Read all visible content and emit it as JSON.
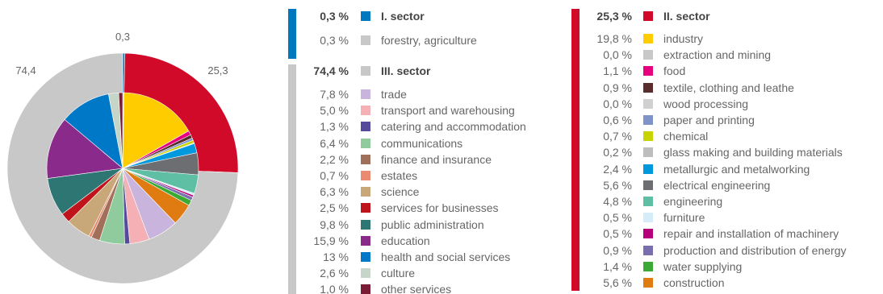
{
  "chart_data": {
    "type": "pie",
    "title": "",
    "outer_ring": {
      "slices": [
        {
          "name": "I. sector",
          "value": 0.3,
          "label": "0,3",
          "color": "#0078bf"
        },
        {
          "name": "II. sector",
          "value": 25.3,
          "label": "25,3",
          "color": "#d20a29"
        },
        {
          "name": "III. sector",
          "value": 74.4,
          "label": "74,4",
          "color": "#c8c8c8"
        }
      ]
    },
    "inner_ring": {
      "slices": [
        {
          "name": "forestry, agriculture",
          "value": 0.3,
          "color": "#c8c8c8"
        },
        {
          "name": "industry",
          "value": 19.8,
          "color": "#ffcc00"
        },
        {
          "name": "extraction and mining",
          "value": 0.0,
          "color": "#c8c8c8"
        },
        {
          "name": "food",
          "value": 1.1,
          "color": "#e6007e"
        },
        {
          "name": "textile, clothing and leathe",
          "value": 0.9,
          "color": "#5a2d2d"
        },
        {
          "name": "wood processing",
          "value": 0.0,
          "color": "#d0d0d0"
        },
        {
          "name": "paper and printing",
          "value": 0.6,
          "color": "#7f93c8"
        },
        {
          "name": "chemical",
          "value": 0.7,
          "color": "#c8d400"
        },
        {
          "name": "glass making and building materials",
          "value": 0.2,
          "color": "#bdbdbd"
        },
        {
          "name": "metallurgic and metalworking",
          "value": 2.4,
          "color": "#0099dd"
        },
        {
          "name": "electrical engineering",
          "value": 5.6,
          "color": "#6d6e71"
        },
        {
          "name": "engineering",
          "value": 4.8,
          "color": "#5fbfa5"
        },
        {
          "name": "furniture",
          "value": 0.5,
          "color": "#d6ecf8"
        },
        {
          "name": "repair and installation of machinery",
          "value": 0.5,
          "color": "#b5007a"
        },
        {
          "name": "production and distribution of energy",
          "value": 0.9,
          "color": "#7a6fae"
        },
        {
          "name": "water supplying",
          "value": 1.4,
          "color": "#3aa935"
        },
        {
          "name": "construction",
          "value": 5.6,
          "color": "#e07b12"
        },
        {
          "name": "trade",
          "value": 7.8,
          "color": "#c8b4dc"
        },
        {
          "name": "transport and warehousing",
          "value": 5.0,
          "color": "#f4b0b5"
        },
        {
          "name": "catering and accommodation",
          "value": 1.3,
          "color": "#554a9c"
        },
        {
          "name": "communications",
          "value": 6.4,
          "color": "#8fcb9c"
        },
        {
          "name": "finance and insurance",
          "value": 2.2,
          "color": "#a0705a"
        },
        {
          "name": "estates",
          "value": 0.7,
          "color": "#ea8a70"
        },
        {
          "name": "science",
          "value": 6.3,
          "color": "#c8a878"
        },
        {
          "name": "services for businesses",
          "value": 2.5,
          "color": "#c0141c"
        },
        {
          "name": "public administration",
          "value": 9.8,
          "color": "#2d7673"
        },
        {
          "name": "education",
          "value": 15.9,
          "color": "#8a2a8a"
        },
        {
          "name": "health and social services",
          "value": 13,
          "color": "#0078c8"
        },
        {
          "name": "culture",
          "value": 2.6,
          "color": "#c5d6c8"
        },
        {
          "name": "other services",
          "value": 1.0,
          "color": "#7a1c35"
        }
      ]
    }
  },
  "legend": {
    "sector1": {
      "header": {
        "pct": "0,3 %",
        "label": "I. sector",
        "color": "#0078bf"
      },
      "items": [
        {
          "pct": "0,3 %",
          "label": "forestry, agriculture",
          "color": "#c8c8c8"
        }
      ]
    },
    "sector3": {
      "header": {
        "pct": "74,4 %",
        "label": "III. sector",
        "color": "#c8c8c8"
      },
      "items": [
        {
          "pct": "7,8 %",
          "label": "trade",
          "color": "#c8b4dc"
        },
        {
          "pct": "5,0 %",
          "label": "transport and warehousing",
          "color": "#f4b0b5"
        },
        {
          "pct": "1,3 %",
          "label": "catering and accommodation",
          "color": "#554a9c"
        },
        {
          "pct": "6,4 %",
          "label": "communications",
          "color": "#8fcb9c"
        },
        {
          "pct": "2,2 %",
          "label": "finance and insurance",
          "color": "#a0705a"
        },
        {
          "pct": "0,7 %",
          "label": "estates",
          "color": "#ea8a70"
        },
        {
          "pct": "6,3 %",
          "label": "science",
          "color": "#c8a878"
        },
        {
          "pct": "2,5 %",
          "label": "services for businesses",
          "color": "#c0141c"
        },
        {
          "pct": "9,8 %",
          "label": "public administration",
          "color": "#2d7673"
        },
        {
          "pct": "15,9 %",
          "label": "education",
          "color": "#8a2a8a"
        },
        {
          "pct": "13 %",
          "label": "health and social services",
          "color": "#0078c8"
        },
        {
          "pct": "2,6 %",
          "label": "culture",
          "color": "#c5d6c8"
        },
        {
          "pct": "1,0 %",
          "label": "other services",
          "color": "#7a1c35"
        }
      ]
    },
    "sector2": {
      "header": {
        "pct": "25,3 %",
        "label": "II. sector",
        "color": "#d20a29"
      },
      "items": [
        {
          "pct": "19,8 %",
          "label": "industry",
          "color": "#ffcc00"
        },
        {
          "pct": "0,0 %",
          "label": "extraction and mining",
          "color": "#c8c8c8"
        },
        {
          "pct": "1,1 %",
          "label": "food",
          "color": "#e6007e"
        },
        {
          "pct": "0,9 %",
          "label": "textile, clothing and leathe",
          "color": "#5a2d2d"
        },
        {
          "pct": "0,0 %",
          "label": "wood processing",
          "color": "#d0d0d0"
        },
        {
          "pct": "0,6 %",
          "label": "paper and printing",
          "color": "#7f93c8"
        },
        {
          "pct": "0,7 %",
          "label": "chemical",
          "color": "#c8d400"
        },
        {
          "pct": "0,2 %",
          "label": "glass making and building materials",
          "color": "#bdbdbd"
        },
        {
          "pct": "2,4 %",
          "label": "metallurgic and metalworking",
          "color": "#0099dd"
        },
        {
          "pct": "5,6 %",
          "label": "electrical engineering",
          "color": "#6d6e71"
        },
        {
          "pct": "4,8 %",
          "label": "engineering",
          "color": "#5fbfa5"
        },
        {
          "pct": "0,5 %",
          "label": "furniture",
          "color": "#d6ecf8"
        },
        {
          "pct": "0,5 %",
          "label": "repair and installation of machinery",
          "color": "#b5007a"
        },
        {
          "pct": "0,9 %",
          "label": "production and distribution of energy",
          "color": "#7a6fae"
        },
        {
          "pct": "1,4 %",
          "label": "water supplying",
          "color": "#3aa935"
        },
        {
          "pct": "5,6 %",
          "label": "construction",
          "color": "#e07b12"
        }
      ]
    }
  }
}
